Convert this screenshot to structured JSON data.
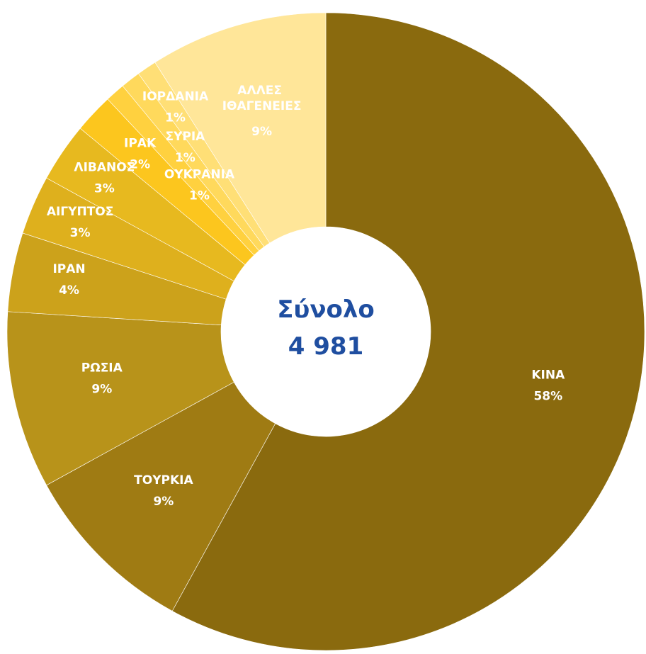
{
  "chart_data": {
    "type": "donut",
    "categories": [
      "ΚΙΝΑ",
      "ΤΟΥΡΚΙΑ",
      "ΡΩΣΙΑ",
      "ΙΡΑΝ",
      "ΑΙΓΥΠΤΟΣ",
      "ΛΙΒΑΝΟΣ",
      "ΙΡΑΚ",
      "ΟΥΚΡΑΝΙΑ",
      "ΣΥΡΙΑ",
      "ΙΟΡΔΑΝΙΑ",
      "ΑΛΛΕΣ ΙΘΑΓΕΝΕΙΕΣ"
    ],
    "values": [
      58,
      9,
      9,
      4,
      3,
      3,
      2,
      1,
      1,
      1,
      9
    ],
    "value_labels": [
      "58%",
      "9%",
      "9%",
      "4%",
      "3%",
      "3%",
      "2%",
      "1%",
      "1%",
      "1%",
      "9%"
    ],
    "colors": [
      "#8a6a0e",
      "#9f7b13",
      "#b8931a",
      "#cca21b",
      "#deb01d",
      "#e7b91f",
      "#fcc61e",
      "#ffd13f",
      "#ffd95c",
      "#ffdf76",
      "#ffe699"
    ],
    "center_title": "Σύνολο",
    "total": {
      "value": 4981,
      "label": "4 981"
    }
  }
}
